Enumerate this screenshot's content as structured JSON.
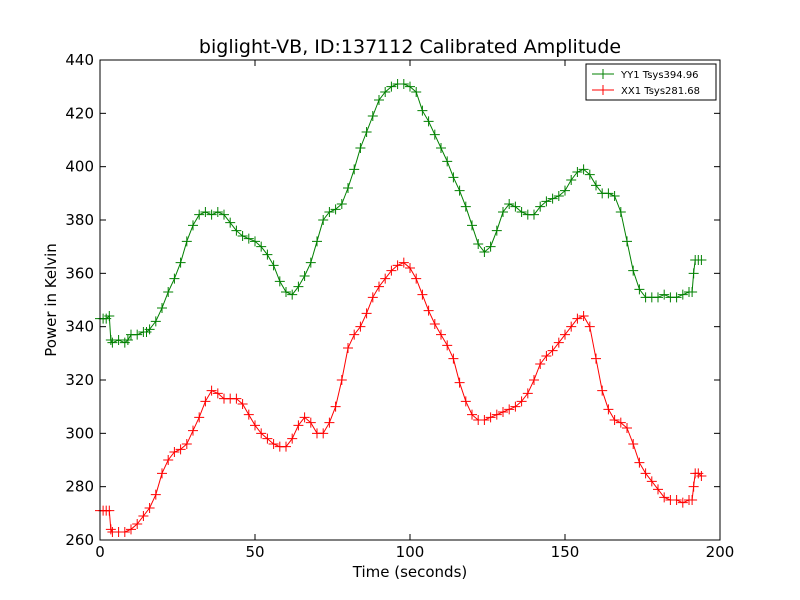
{
  "chart_data": {
    "type": "line",
    "title": "biglight-VB, ID:137112 Calibrated Amplitude",
    "xlabel": "Time (seconds)",
    "ylabel": "Power in Kelvin",
    "xlim": [
      0,
      200
    ],
    "ylim": [
      260,
      440
    ],
    "xticks": [
      0,
      50,
      100,
      150,
      200
    ],
    "yticks": [
      260,
      280,
      300,
      320,
      340,
      360,
      380,
      400,
      420,
      440
    ],
    "grid": false,
    "legend_position": "top-right",
    "marker": "plus",
    "series": [
      {
        "name": "YY1 Tsys394.96",
        "color": "#008000",
        "points": [
          [
            0,
            343
          ],
          [
            1,
            343
          ],
          [
            2,
            343
          ],
          [
            3,
            344
          ],
          [
            3.5,
            335
          ],
          [
            4,
            334
          ],
          [
            6,
            335
          ],
          [
            8,
            334
          ],
          [
            9,
            335
          ],
          [
            10,
            337
          ],
          [
            12,
            337
          ],
          [
            14,
            338
          ],
          [
            15,
            338
          ],
          [
            16,
            339
          ],
          [
            18,
            342
          ],
          [
            20,
            347
          ],
          [
            22,
            353
          ],
          [
            24,
            358
          ],
          [
            26,
            364
          ],
          [
            28,
            372
          ],
          [
            30,
            378
          ],
          [
            32,
            382
          ],
          [
            34,
            383
          ],
          [
            36,
            382
          ],
          [
            38,
            383
          ],
          [
            40,
            382
          ],
          [
            42,
            379
          ],
          [
            44,
            376
          ],
          [
            46,
            374
          ],
          [
            48,
            373
          ],
          [
            50,
            372
          ],
          [
            52,
            370
          ],
          [
            54,
            367
          ],
          [
            56,
            363
          ],
          [
            58,
            357
          ],
          [
            60,
            353
          ],
          [
            62,
            352
          ],
          [
            64,
            355
          ],
          [
            66,
            359
          ],
          [
            68,
            364
          ],
          [
            70,
            372
          ],
          [
            72,
            380
          ],
          [
            74,
            383
          ],
          [
            76,
            384
          ],
          [
            78,
            386
          ],
          [
            80,
            392
          ],
          [
            82,
            399
          ],
          [
            84,
            407
          ],
          [
            86,
            413
          ],
          [
            88,
            419
          ],
          [
            90,
            425
          ],
          [
            92,
            428
          ],
          [
            94,
            430
          ],
          [
            96,
            431
          ],
          [
            98,
            431
          ],
          [
            100,
            430
          ],
          [
            102,
            428
          ],
          [
            104,
            421
          ],
          [
            106,
            417
          ],
          [
            108,
            412
          ],
          [
            110,
            407
          ],
          [
            112,
            402
          ],
          [
            114,
            396
          ],
          [
            116,
            391
          ],
          [
            118,
            385
          ],
          [
            120,
            378
          ],
          [
            122,
            371
          ],
          [
            124,
            368
          ],
          [
            126,
            370
          ],
          [
            128,
            376
          ],
          [
            130,
            383
          ],
          [
            132,
            386
          ],
          [
            134,
            385
          ],
          [
            136,
            383
          ],
          [
            138,
            382
          ],
          [
            140,
            382
          ],
          [
            142,
            385
          ],
          [
            144,
            387
          ],
          [
            146,
            388
          ],
          [
            148,
            389
          ],
          [
            150,
            391
          ],
          [
            152,
            395
          ],
          [
            154,
            398
          ],
          [
            156,
            399
          ],
          [
            158,
            397
          ],
          [
            160,
            393
          ],
          [
            162,
            390
          ],
          [
            164,
            390
          ],
          [
            166,
            389
          ],
          [
            168,
            383
          ],
          [
            170,
            372
          ],
          [
            172,
            361
          ],
          [
            174,
            354
          ],
          [
            176,
            351
          ],
          [
            178,
            351
          ],
          [
            180,
            351
          ],
          [
            182,
            352
          ],
          [
            184,
            351
          ],
          [
            186,
            351
          ],
          [
            188,
            352
          ],
          [
            190,
            353
          ],
          [
            191,
            353
          ],
          [
            191.5,
            360
          ],
          [
            192,
            365
          ],
          [
            193,
            365
          ],
          [
            194,
            365
          ]
        ]
      },
      {
        "name": "XX1 Tsys281.68",
        "color": "#ff0000",
        "points": [
          [
            0,
            271
          ],
          [
            1,
            271
          ],
          [
            2,
            271
          ],
          [
            3,
            271
          ],
          [
            3.5,
            264
          ],
          [
            4,
            263
          ],
          [
            6,
            263
          ],
          [
            8,
            263
          ],
          [
            10,
            264
          ],
          [
            12,
            266
          ],
          [
            14,
            269
          ],
          [
            16,
            272
          ],
          [
            18,
            277
          ],
          [
            20,
            285
          ],
          [
            22,
            290
          ],
          [
            24,
            293
          ],
          [
            26,
            294
          ],
          [
            28,
            296
          ],
          [
            30,
            301
          ],
          [
            32,
            306
          ],
          [
            34,
            312
          ],
          [
            36,
            316
          ],
          [
            38,
            315
          ],
          [
            40,
            313
          ],
          [
            42,
            313
          ],
          [
            44,
            313
          ],
          [
            46,
            311
          ],
          [
            48,
            307
          ],
          [
            50,
            303
          ],
          [
            52,
            300
          ],
          [
            54,
            298
          ],
          [
            56,
            296
          ],
          [
            58,
            295
          ],
          [
            60,
            295
          ],
          [
            62,
            298
          ],
          [
            64,
            303
          ],
          [
            66,
            306
          ],
          [
            68,
            304
          ],
          [
            70,
            300
          ],
          [
            72,
            300
          ],
          [
            74,
            304
          ],
          [
            76,
            310
          ],
          [
            78,
            320
          ],
          [
            80,
            332
          ],
          [
            82,
            337
          ],
          [
            84,
            340
          ],
          [
            86,
            345
          ],
          [
            88,
            351
          ],
          [
            90,
            355
          ],
          [
            92,
            358
          ],
          [
            94,
            361
          ],
          [
            96,
            363
          ],
          [
            98,
            364
          ],
          [
            100,
            362
          ],
          [
            102,
            358
          ],
          [
            104,
            352
          ],
          [
            106,
            346
          ],
          [
            108,
            341
          ],
          [
            110,
            337
          ],
          [
            112,
            333
          ],
          [
            114,
            328
          ],
          [
            116,
            319
          ],
          [
            118,
            312
          ],
          [
            120,
            307
          ],
          [
            122,
            305
          ],
          [
            124,
            305
          ],
          [
            126,
            306
          ],
          [
            128,
            307
          ],
          [
            130,
            308
          ],
          [
            132,
            309
          ],
          [
            134,
            310
          ],
          [
            136,
            312
          ],
          [
            138,
            315
          ],
          [
            140,
            320
          ],
          [
            142,
            326
          ],
          [
            144,
            329
          ],
          [
            146,
            331
          ],
          [
            148,
            334
          ],
          [
            150,
            337
          ],
          [
            152,
            340
          ],
          [
            154,
            343
          ],
          [
            156,
            344
          ],
          [
            158,
            340
          ],
          [
            160,
            328
          ],
          [
            162,
            316
          ],
          [
            164,
            309
          ],
          [
            166,
            305
          ],
          [
            168,
            304
          ],
          [
            170,
            302
          ],
          [
            172,
            296
          ],
          [
            174,
            289
          ],
          [
            176,
            285
          ],
          [
            178,
            282
          ],
          [
            180,
            279
          ],
          [
            182,
            276
          ],
          [
            184,
            275
          ],
          [
            186,
            275
          ],
          [
            188,
            274
          ],
          [
            190,
            275
          ],
          [
            191,
            275
          ],
          [
            191.5,
            280
          ],
          [
            192,
            285
          ],
          [
            193,
            285
          ],
          [
            194,
            284
          ]
        ]
      }
    ]
  }
}
